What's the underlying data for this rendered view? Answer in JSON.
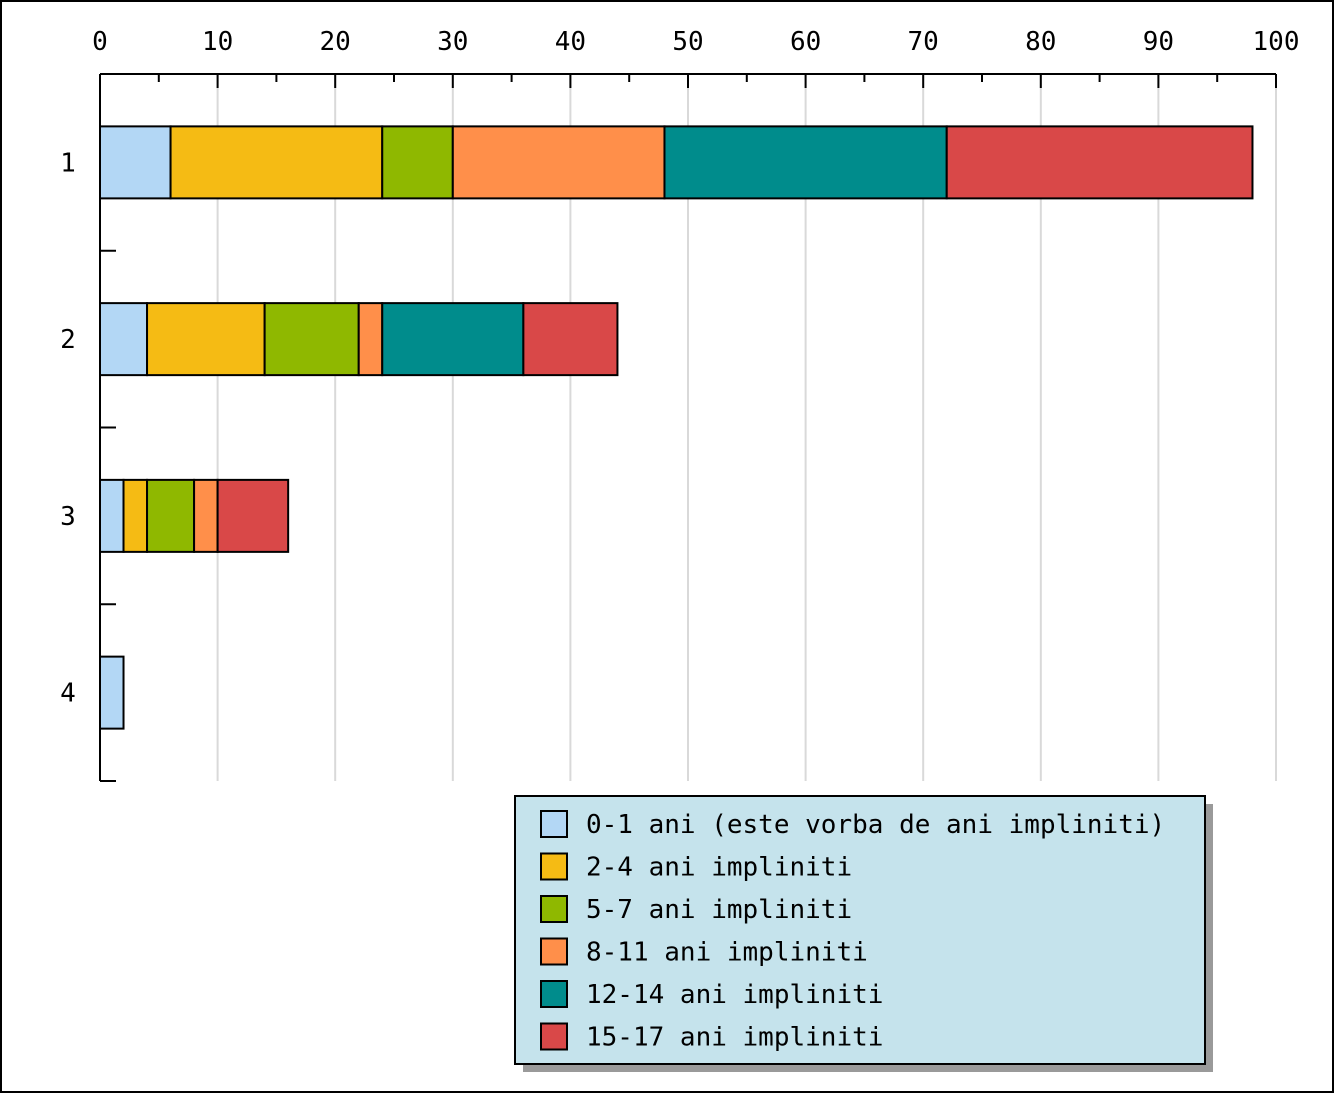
{
  "chart_data": {
    "type": "bar",
    "orientation": "horizontal",
    "stacked": true,
    "categories": [
      "1",
      "2",
      "3",
      "4"
    ],
    "xlim": [
      0,
      100
    ],
    "x_ticks": [
      "0",
      "10",
      "20",
      "30",
      "40",
      "50",
      "60",
      "70",
      "80",
      "90",
      "100"
    ],
    "grid": true,
    "legend_position": "bottom-right",
    "legend_background": "#c5e3ec",
    "series": [
      {
        "name": "0-1 ani (este vorba de ani impliniti)",
        "color": "#b3d7f5",
        "values": [
          6,
          4,
          2,
          2
        ]
      },
      {
        "name": "2-4 ani impliniti",
        "color": "#f5bb14",
        "values": [
          18,
          10,
          2,
          0
        ]
      },
      {
        "name": "5-7 ani impliniti",
        "color": "#8fb800",
        "values": [
          6,
          8,
          4,
          0
        ]
      },
      {
        "name": "8-11 ani impliniti",
        "color": "#ff8f4a",
        "values": [
          18,
          2,
          2,
          0
        ]
      },
      {
        "name": "12-14 ani impliniti",
        "color": "#008c8c",
        "values": [
          24,
          12,
          0,
          0
        ]
      },
      {
        "name": "15-17 ani impliniti",
        "color": "#d94848",
        "values": [
          26,
          8,
          6,
          0
        ]
      }
    ]
  }
}
